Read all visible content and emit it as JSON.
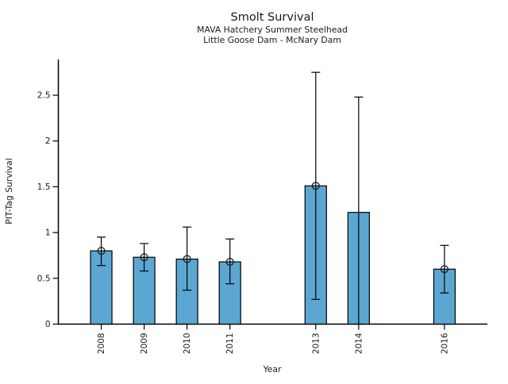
{
  "chart_data": {
    "type": "bar",
    "title": "Smolt Survival",
    "subtitle": [
      "MAVA Hatchery Summer Steelhead",
      "Little Goose Dam - McNary Dam"
    ],
    "xlabel": "Year",
    "ylabel": "PIT-Tag Survival",
    "categories": [
      "2008",
      "2009",
      "2010",
      "2011",
      "2013",
      "2014",
      "2016"
    ],
    "points": [
      {
        "year": 2008,
        "value": 0.8,
        "ci_low": 0.64,
        "ci_high": 0.95,
        "marker": true
      },
      {
        "year": 2009,
        "value": 0.73,
        "ci_low": 0.58,
        "ci_high": 0.88,
        "marker": true
      },
      {
        "year": 2010,
        "value": 0.71,
        "ci_low": 0.37,
        "ci_high": 1.06,
        "marker": true
      },
      {
        "year": 2011,
        "value": 0.68,
        "ci_low": 0.44,
        "ci_high": 0.93,
        "marker": true
      },
      {
        "year": 2013,
        "value": 1.51,
        "ci_low": 0.27,
        "ci_high": 2.75,
        "marker": true
      },
      {
        "year": 2014,
        "value": 1.22,
        "ci_low": 0.0,
        "ci_high": 2.48,
        "marker": false
      },
      {
        "year": 2016,
        "value": 0.6,
        "ci_low": 0.34,
        "ci_high": 0.86,
        "marker": true
      }
    ],
    "yticks": [
      "0",
      "0.5",
      "1",
      "1.5",
      "2",
      "2.5"
    ],
    "ytick_values": [
      0,
      0.5,
      1,
      1.5,
      2,
      2.5
    ],
    "ylim": [
      0,
      2.89
    ],
    "x_range": [
      2007,
      2017
    ],
    "missing_years": [
      2012,
      2015
    ],
    "grid": false,
    "legend": null,
    "bar_color": "#5ba7d1",
    "bar_edge_color": "#000000",
    "errorbar_color": "#000000",
    "text_color": "#1a1a1a"
  }
}
